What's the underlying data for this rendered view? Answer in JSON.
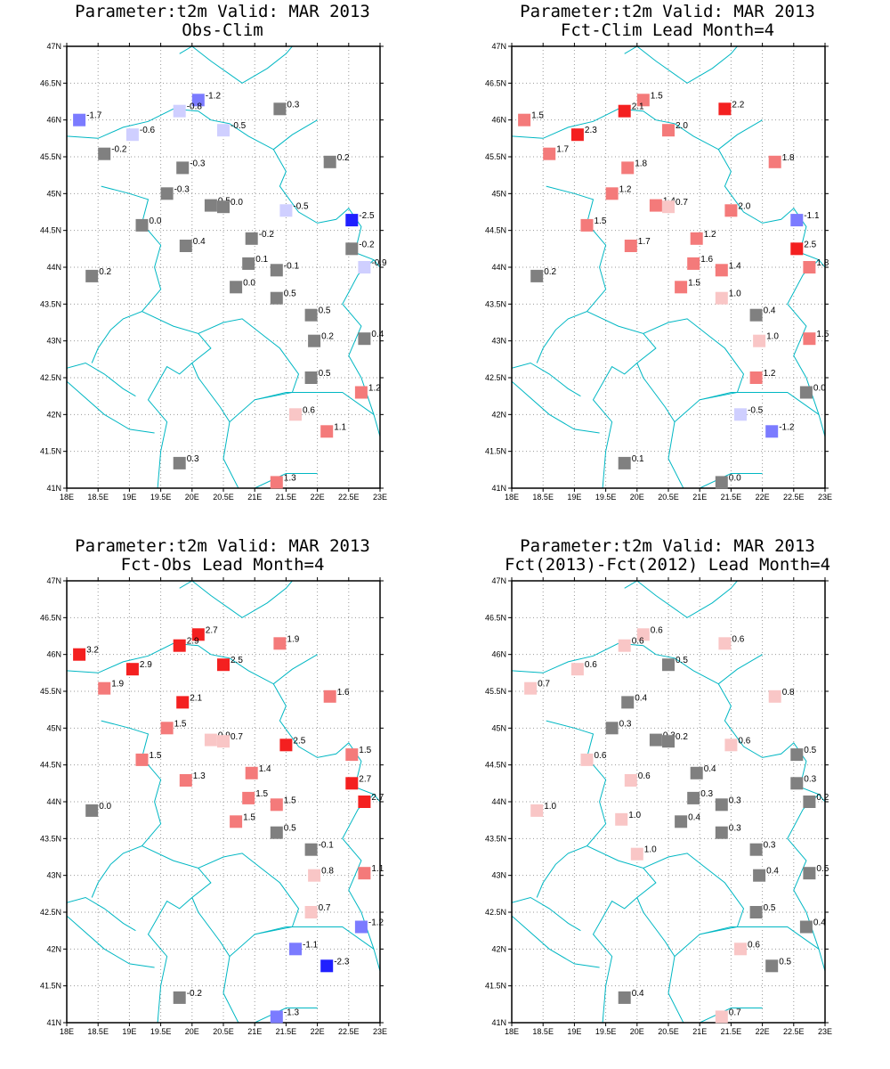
{
  "axes": {
    "lon_min": 18,
    "lon_max": 23,
    "lat_min": 41,
    "lat_max": 47,
    "lon_ticks": [
      "18E",
      "18.5E",
      "19E",
      "19.5E",
      "20E",
      "20.5E",
      "21E",
      "21.5E",
      "22E",
      "22.5E",
      "23E"
    ],
    "lat_ticks": [
      "41N",
      "41.5N",
      "42N",
      "42.5N",
      "43N",
      "43.5N",
      "44N",
      "44.5N",
      "45N",
      "45.5N",
      "46N",
      "46.5N",
      "47N"
    ],
    "grid": "dotted"
  },
  "colors": {
    "border": "#00b7c3",
    "neutral": "#808080"
  },
  "panels": [
    {
      "title": "Parameter:t2m Valid: MAR 2013",
      "subtitle": "Obs-Clim",
      "stations": [
        {
          "lon": 18.2,
          "lat": 46.0,
          "label": "-1.7",
          "color": "#7b7bff"
        },
        {
          "lon": 20.1,
          "lat": 46.27,
          "label": "-1.2",
          "color": "#7b7bff"
        },
        {
          "lon": 19.8,
          "lat": 46.12,
          "label": "-0.8",
          "color": "#cfcfff"
        },
        {
          "lon": 19.05,
          "lat": 45.8,
          "label": "-0.6",
          "color": "#cfcfff"
        },
        {
          "lon": 20.5,
          "lat": 45.86,
          "label": "-0.5",
          "color": "#cfcfff"
        },
        {
          "lon": 21.4,
          "lat": 46.15,
          "label": "0.3",
          "color": "#808080"
        },
        {
          "lon": 18.6,
          "lat": 45.54,
          "label": "-0.2",
          "color": "#808080"
        },
        {
          "lon": 19.85,
          "lat": 45.35,
          "label": "-0.3",
          "color": "#808080"
        },
        {
          "lon": 22.2,
          "lat": 45.43,
          "label": "0.2",
          "color": "#808080"
        },
        {
          "lon": 19.6,
          "lat": 45.0,
          "label": "-0.3",
          "color": "#808080"
        },
        {
          "lon": 20.3,
          "lat": 44.84,
          "label": "0.5",
          "color": "#808080"
        },
        {
          "lon": 20.5,
          "lat": 44.82,
          "label": "0.0",
          "color": "#808080"
        },
        {
          "lon": 21.5,
          "lat": 44.77,
          "label": "-0.5",
          "color": "#cfcfff"
        },
        {
          "lon": 22.55,
          "lat": 44.64,
          "label": "-2.5",
          "color": "#2020ff"
        },
        {
          "lon": 19.2,
          "lat": 44.57,
          "label": "0.0",
          "color": "#808080"
        },
        {
          "lon": 20.95,
          "lat": 44.39,
          "label": "-0.2",
          "color": "#808080"
        },
        {
          "lon": 19.9,
          "lat": 44.29,
          "label": "0.4",
          "color": "#808080"
        },
        {
          "lon": 22.55,
          "lat": 44.25,
          "label": "-0.2",
          "color": "#808080"
        },
        {
          "lon": 20.9,
          "lat": 44.05,
          "label": "0.1",
          "color": "#808080"
        },
        {
          "lon": 21.35,
          "lat": 43.96,
          "label": "-0.1",
          "color": "#808080"
        },
        {
          "lon": 22.75,
          "lat": 44.0,
          "label": "-0.9",
          "color": "#cfcfff"
        },
        {
          "lon": 18.4,
          "lat": 43.88,
          "label": "0.2",
          "color": "#808080"
        },
        {
          "lon": 20.7,
          "lat": 43.73,
          "label": "0.0",
          "color": "#808080"
        },
        {
          "lon": 21.35,
          "lat": 43.58,
          "label": "0.5",
          "color": "#808080"
        },
        {
          "lon": 21.9,
          "lat": 43.35,
          "label": "0.5",
          "color": "#808080"
        },
        {
          "lon": 21.95,
          "lat": 43.0,
          "label": "0.2",
          "color": "#808080"
        },
        {
          "lon": 22.75,
          "lat": 43.03,
          "label": "0.4",
          "color": "#808080"
        },
        {
          "lon": 21.9,
          "lat": 42.5,
          "label": "0.5",
          "color": "#808080"
        },
        {
          "lon": 22.7,
          "lat": 42.3,
          "label": "1.2",
          "color": "#f47a7a"
        },
        {
          "lon": 21.65,
          "lat": 42.0,
          "label": "0.6",
          "color": "#f9c6c6"
        },
        {
          "lon": 22.15,
          "lat": 41.77,
          "label": "1.1",
          "color": "#f47a7a"
        },
        {
          "lon": 19.8,
          "lat": 41.34,
          "label": "0.3",
          "color": "#808080"
        },
        {
          "lon": 21.35,
          "lat": 41.08,
          "label": "1.3",
          "color": "#f47a7a"
        }
      ]
    },
    {
      "title": "Parameter:t2m Valid: MAR 2013",
      "subtitle": "Fct-Clim Lead Month=4",
      "stations": [
        {
          "lon": 18.2,
          "lat": 46.0,
          "label": "1.5",
          "color": "#f47a7a"
        },
        {
          "lon": 20.1,
          "lat": 46.27,
          "label": "1.5",
          "color": "#f47a7a"
        },
        {
          "lon": 19.8,
          "lat": 46.12,
          "label": "2.1",
          "color": "#f42020"
        },
        {
          "lon": 19.05,
          "lat": 45.8,
          "label": "2.3",
          "color": "#f42020"
        },
        {
          "lon": 20.5,
          "lat": 45.86,
          "label": "2.0",
          "color": "#f47a7a"
        },
        {
          "lon": 21.4,
          "lat": 46.15,
          "label": "2.2",
          "color": "#f42020"
        },
        {
          "lon": 18.6,
          "lat": 45.54,
          "label": "1.7",
          "color": "#f47a7a"
        },
        {
          "lon": 19.85,
          "lat": 45.35,
          "label": "1.8",
          "color": "#f47a7a"
        },
        {
          "lon": 22.2,
          "lat": 45.43,
          "label": "1.8",
          "color": "#f47a7a"
        },
        {
          "lon": 19.6,
          "lat": 45.0,
          "label": "1.2",
          "color": "#f47a7a"
        },
        {
          "lon": 20.3,
          "lat": 44.84,
          "label": "1.4",
          "color": "#f47a7a"
        },
        {
          "lon": 20.5,
          "lat": 44.82,
          "label": "0.7",
          "color": "#f9c6c6"
        },
        {
          "lon": 21.5,
          "lat": 44.77,
          "label": "2.0",
          "color": "#f47a7a"
        },
        {
          "lon": 22.55,
          "lat": 44.64,
          "label": "-1.1",
          "color": "#7b7bff"
        },
        {
          "lon": 19.2,
          "lat": 44.57,
          "label": "1.5",
          "color": "#f47a7a"
        },
        {
          "lon": 20.95,
          "lat": 44.39,
          "label": "1.2",
          "color": "#f47a7a"
        },
        {
          "lon": 19.9,
          "lat": 44.29,
          "label": "1.7",
          "color": "#f47a7a"
        },
        {
          "lon": 22.55,
          "lat": 44.25,
          "label": "2.5",
          "color": "#f42020"
        },
        {
          "lon": 20.9,
          "lat": 44.05,
          "label": "1.6",
          "color": "#f47a7a"
        },
        {
          "lon": 21.35,
          "lat": 43.96,
          "label": "1.4",
          "color": "#f47a7a"
        },
        {
          "lon": 22.75,
          "lat": 44.0,
          "label": "1.8",
          "color": "#f47a7a"
        },
        {
          "lon": 18.4,
          "lat": 43.88,
          "label": "0.2",
          "color": "#808080"
        },
        {
          "lon": 20.7,
          "lat": 43.73,
          "label": "1.5",
          "color": "#f47a7a"
        },
        {
          "lon": 21.35,
          "lat": 43.58,
          "label": "1.0",
          "color": "#f9c6c6"
        },
        {
          "lon": 21.9,
          "lat": 43.35,
          "label": "0.4",
          "color": "#808080"
        },
        {
          "lon": 21.95,
          "lat": 43.0,
          "label": "1.0",
          "color": "#f9c6c6"
        },
        {
          "lon": 22.75,
          "lat": 43.03,
          "label": "1.5",
          "color": "#f47a7a"
        },
        {
          "lon": 21.9,
          "lat": 42.5,
          "label": "1.2",
          "color": "#f47a7a"
        },
        {
          "lon": 22.7,
          "lat": 42.3,
          "label": "0.0",
          "color": "#808080"
        },
        {
          "lon": 21.65,
          "lat": 42.0,
          "label": "-0.5",
          "color": "#cfcfff"
        },
        {
          "lon": 22.15,
          "lat": 41.77,
          "label": "-1.2",
          "color": "#7b7bff"
        },
        {
          "lon": 19.8,
          "lat": 41.34,
          "label": "0.1",
          "color": "#808080"
        },
        {
          "lon": 21.35,
          "lat": 41.08,
          "label": "0.0",
          "color": "#808080"
        }
      ]
    },
    {
      "title": "Parameter:t2m Valid: MAR 2013",
      "subtitle": "Fct-Obs Lead Month=4",
      "stations": [
        {
          "lon": 18.2,
          "lat": 46.0,
          "label": "3.2",
          "color": "#f42020"
        },
        {
          "lon": 20.1,
          "lat": 46.27,
          "label": "2.7",
          "color": "#f42020"
        },
        {
          "lon": 19.8,
          "lat": 46.12,
          "label": "2.9",
          "color": "#f42020"
        },
        {
          "lon": 19.05,
          "lat": 45.8,
          "label": "2.9",
          "color": "#f42020"
        },
        {
          "lon": 20.5,
          "lat": 45.86,
          "label": "2.5",
          "color": "#f42020"
        },
        {
          "lon": 21.4,
          "lat": 46.15,
          "label": "1.9",
          "color": "#f47a7a"
        },
        {
          "lon": 18.6,
          "lat": 45.54,
          "label": "1.9",
          "color": "#f47a7a"
        },
        {
          "lon": 19.85,
          "lat": 45.35,
          "label": "2.1",
          "color": "#f42020"
        },
        {
          "lon": 22.2,
          "lat": 45.43,
          "label": "1.6",
          "color": "#f47a7a"
        },
        {
          "lon": 19.6,
          "lat": 45.0,
          "label": "1.5",
          "color": "#f47a7a"
        },
        {
          "lon": 20.3,
          "lat": 44.84,
          "label": "0.9",
          "color": "#f9c6c6"
        },
        {
          "lon": 20.5,
          "lat": 44.82,
          "label": "0.7",
          "color": "#f9c6c6"
        },
        {
          "lon": 21.5,
          "lat": 44.77,
          "label": "2.5",
          "color": "#f42020"
        },
        {
          "lon": 22.55,
          "lat": 44.64,
          "label": "1.5",
          "color": "#f47a7a"
        },
        {
          "lon": 19.2,
          "lat": 44.57,
          "label": "1.5",
          "color": "#f47a7a"
        },
        {
          "lon": 20.95,
          "lat": 44.39,
          "label": "1.4",
          "color": "#f47a7a"
        },
        {
          "lon": 19.9,
          "lat": 44.29,
          "label": "1.3",
          "color": "#f47a7a"
        },
        {
          "lon": 22.55,
          "lat": 44.25,
          "label": "2.7",
          "color": "#f42020"
        },
        {
          "lon": 20.9,
          "lat": 44.05,
          "label": "1.5",
          "color": "#f47a7a"
        },
        {
          "lon": 21.35,
          "lat": 43.96,
          "label": "1.5",
          "color": "#f47a7a"
        },
        {
          "lon": 22.75,
          "lat": 44.0,
          "label": "2.7",
          "color": "#f42020"
        },
        {
          "lon": 18.4,
          "lat": 43.88,
          "label": "0.0",
          "color": "#808080"
        },
        {
          "lon": 20.7,
          "lat": 43.73,
          "label": "1.5",
          "color": "#f47a7a"
        },
        {
          "lon": 21.35,
          "lat": 43.58,
          "label": "0.5",
          "color": "#808080"
        },
        {
          "lon": 21.9,
          "lat": 43.35,
          "label": "-0.1",
          "color": "#808080"
        },
        {
          "lon": 21.95,
          "lat": 43.0,
          "label": "0.8",
          "color": "#f9c6c6"
        },
        {
          "lon": 22.75,
          "lat": 43.03,
          "label": "1.1",
          "color": "#f47a7a"
        },
        {
          "lon": 21.9,
          "lat": 42.5,
          "label": "0.7",
          "color": "#f9c6c6"
        },
        {
          "lon": 22.7,
          "lat": 42.3,
          "label": "-1.2",
          "color": "#7b7bff"
        },
        {
          "lon": 21.65,
          "lat": 42.0,
          "label": "-1.1",
          "color": "#7b7bff"
        },
        {
          "lon": 22.15,
          "lat": 41.77,
          "label": "-2.3",
          "color": "#2020ff"
        },
        {
          "lon": 19.8,
          "lat": 41.34,
          "label": "-0.2",
          "color": "#808080"
        },
        {
          "lon": 21.35,
          "lat": 41.08,
          "label": "-1.3",
          "color": "#7b7bff"
        }
      ]
    },
    {
      "title": "Parameter:t2m Valid: MAR 2013",
      "subtitle": "Fct(2013)-Fct(2012) Lead Month=4",
      "stations": [
        {
          "lon": 20.1,
          "lat": 46.27,
          "label": "0.6",
          "color": "#f9c6c6"
        },
        {
          "lon": 19.8,
          "lat": 46.12,
          "label": "0.6",
          "color": "#f9c6c6"
        },
        {
          "lon": 21.4,
          "lat": 46.15,
          "label": "0.6",
          "color": "#f9c6c6"
        },
        {
          "lon": 20.5,
          "lat": 45.86,
          "label": "0.5",
          "color": "#808080"
        },
        {
          "lon": 19.05,
          "lat": 45.8,
          "label": "0.6",
          "color": "#f9c6c6"
        },
        {
          "lon": 18.3,
          "lat": 45.54,
          "label": "0.7",
          "color": "#f9c6c6"
        },
        {
          "lon": 22.2,
          "lat": 45.43,
          "label": "0.8",
          "color": "#f9c6c6"
        },
        {
          "lon": 19.85,
          "lat": 45.35,
          "label": "0.4",
          "color": "#808080"
        },
        {
          "lon": 19.6,
          "lat": 45.0,
          "label": "0.3",
          "color": "#808080"
        },
        {
          "lon": 20.3,
          "lat": 44.84,
          "label": "0.3",
          "color": "#808080"
        },
        {
          "lon": 20.5,
          "lat": 44.82,
          "label": "0.2",
          "color": "#808080"
        },
        {
          "lon": 21.5,
          "lat": 44.77,
          "label": "0.6",
          "color": "#f9c6c6"
        },
        {
          "lon": 22.55,
          "lat": 44.64,
          "label": "0.5",
          "color": "#808080"
        },
        {
          "lon": 19.2,
          "lat": 44.57,
          "label": "0.6",
          "color": "#f9c6c6"
        },
        {
          "lon": 20.95,
          "lat": 44.39,
          "label": "0.4",
          "color": "#808080"
        },
        {
          "lon": 19.9,
          "lat": 44.29,
          "label": "0.6",
          "color": "#f9c6c6"
        },
        {
          "lon": 22.55,
          "lat": 44.25,
          "label": "0.3",
          "color": "#808080"
        },
        {
          "lon": 20.9,
          "lat": 44.05,
          "label": "0.3",
          "color": "#808080"
        },
        {
          "lon": 21.35,
          "lat": 43.96,
          "label": "0.3",
          "color": "#808080"
        },
        {
          "lon": 22.75,
          "lat": 44.0,
          "label": "0.2",
          "color": "#808080"
        },
        {
          "lon": 18.4,
          "lat": 43.88,
          "label": "1.0",
          "color": "#f9c6c6"
        },
        {
          "lon": 19.75,
          "lat": 43.76,
          "label": "1.0",
          "color": "#f9c6c6"
        },
        {
          "lon": 20.7,
          "lat": 43.73,
          "label": "0.4",
          "color": "#808080"
        },
        {
          "lon": 21.35,
          "lat": 43.58,
          "label": "0.3",
          "color": "#808080"
        },
        {
          "lon": 20.0,
          "lat": 43.29,
          "label": "1.0",
          "color": "#f9c6c6"
        },
        {
          "lon": 21.9,
          "lat": 43.35,
          "label": "0.3",
          "color": "#808080"
        },
        {
          "lon": 21.95,
          "lat": 43.0,
          "label": "0.4",
          "color": "#808080"
        },
        {
          "lon": 22.75,
          "lat": 43.03,
          "label": "0.5",
          "color": "#808080"
        },
        {
          "lon": 21.9,
          "lat": 42.5,
          "label": "0.5",
          "color": "#808080"
        },
        {
          "lon": 22.7,
          "lat": 42.3,
          "label": "0.4",
          "color": "#808080"
        },
        {
          "lon": 21.65,
          "lat": 42.0,
          "label": "0.6",
          "color": "#f9c6c6"
        },
        {
          "lon": 22.15,
          "lat": 41.77,
          "label": "0.5",
          "color": "#808080"
        },
        {
          "lon": 19.8,
          "lat": 41.34,
          "label": "0.4",
          "color": "#808080"
        },
        {
          "lon": 21.35,
          "lat": 41.08,
          "label": "0.7",
          "color": "#f9c6c6"
        }
      ]
    }
  ]
}
